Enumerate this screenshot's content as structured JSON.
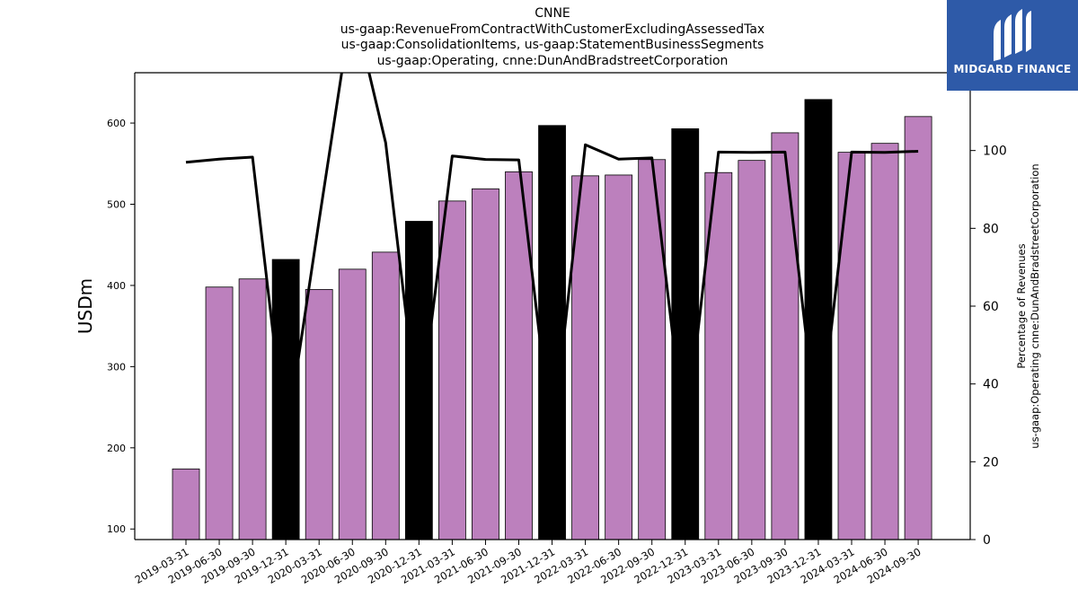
{
  "title_lines": [
    "CNNE",
    "us-gaap:RevenueFromContractWithCustomerExcludingAssessedTax",
    "us-gaap:ConsolidationItems, us-gaap:StatementBusinessSegments",
    "us-gaap:Operating, cnne:DunAndBradstreetCorporation"
  ],
  "logo": {
    "text": "MIDGARD FINANCE",
    "color": "#2e5aa8"
  },
  "chart_data": {
    "type": "bar",
    "categories": [
      "2019-03-31",
      "2019-06-30",
      "2019-09-30",
      "2019-12-31",
      "2020-03-31",
      "2020-06-30",
      "2020-09-30",
      "2020-12-31",
      "2021-03-31",
      "2021-06-30",
      "2021-09-30",
      "2021-12-31",
      "2022-03-31",
      "2022-06-30",
      "2022-09-30",
      "2022-12-31",
      "2023-03-31",
      "2023-06-30",
      "2023-09-30",
      "2023-12-31",
      "2024-03-31",
      "2024-06-30",
      "2024-09-30"
    ],
    "series": [
      {
        "values": [
          174,
          398,
          408,
          432,
          395,
          420,
          441,
          479,
          504,
          519,
          540,
          597,
          535,
          536,
          555,
          593,
          539,
          554,
          588,
          629,
          564,
          575,
          608
        ],
        "bar_colors": [
          "#bc80bd",
          "#bc80bd",
          "#bc80bd",
          "#000000",
          "#bc80bd",
          "#bc80bd",
          "#bc80bd",
          "#000000",
          "#bc80bd",
          "#bc80bd",
          "#bc80bd",
          "#000000",
          "#bc80bd",
          "#bc80bd",
          "#bc80bd",
          "#000000",
          "#bc80bd",
          "#bc80bd",
          "#bc80bd",
          "#000000",
          "#bc80bd",
          "#bc80bd",
          "#bc80bd"
        ],
        "axis": "left"
      },
      {
        "values": [
          97,
          97.8,
          98.3,
          25,
          82,
          138,
          102,
          30,
          98.6,
          97.7,
          97.6,
          25,
          101.5,
          97.8,
          98.1,
          25,
          99.6,
          99.5,
          99.6,
          25,
          99.6,
          99.5,
          99.8
        ],
        "color": "#000000",
        "type": "line",
        "axis": "right"
      }
    ],
    "ylabel": "USDm",
    "y2label_lines": [
      "Percentage of Revenues",
      "us-gaap:Operating cnne:DunAndBradstreetCorporation"
    ],
    "ylim": [
      87,
      662
    ],
    "y2lim": [
      0,
      120
    ],
    "yticks": [
      100,
      200,
      300,
      400,
      500,
      600
    ],
    "y2ticks": [
      0,
      20,
      40,
      60,
      80,
      100
    ],
    "grid": false,
    "legend": "none"
  }
}
